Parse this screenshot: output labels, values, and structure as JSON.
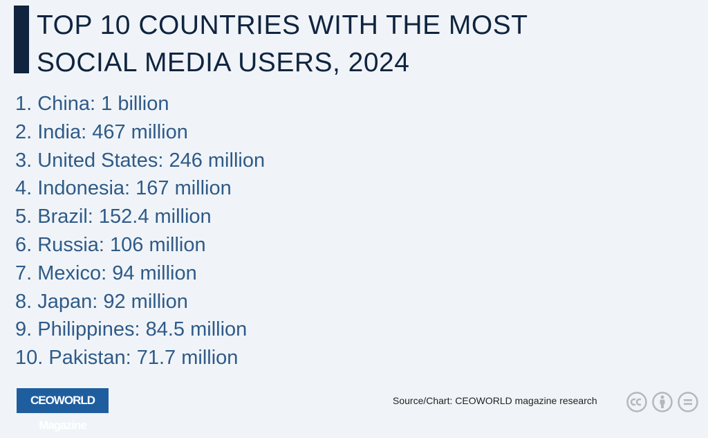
{
  "header": {
    "title_lines": [
      "TOP 10 COUNTRIES WITH THE MOST",
      "SOCIAL MEDIA USERS, 2024"
    ]
  },
  "list": {
    "items": [
      "1. China: 1 billion",
      "2. India: 467 million",
      "3. United States: 246 million",
      "4. Indonesia: 167 million",
      "5. Brazil: 152.4 million",
      "6. Russia: 106 million",
      "7. Mexico: 94 million",
      "8. Japan: 92 million",
      "9. Philippines: 84.5 million",
      "10. Pakistan: 71.7 million"
    ]
  },
  "footer": {
    "logo": "CEOWORLD Magazine",
    "source": "Source/Chart: CEOWORLD magazine research"
  }
}
